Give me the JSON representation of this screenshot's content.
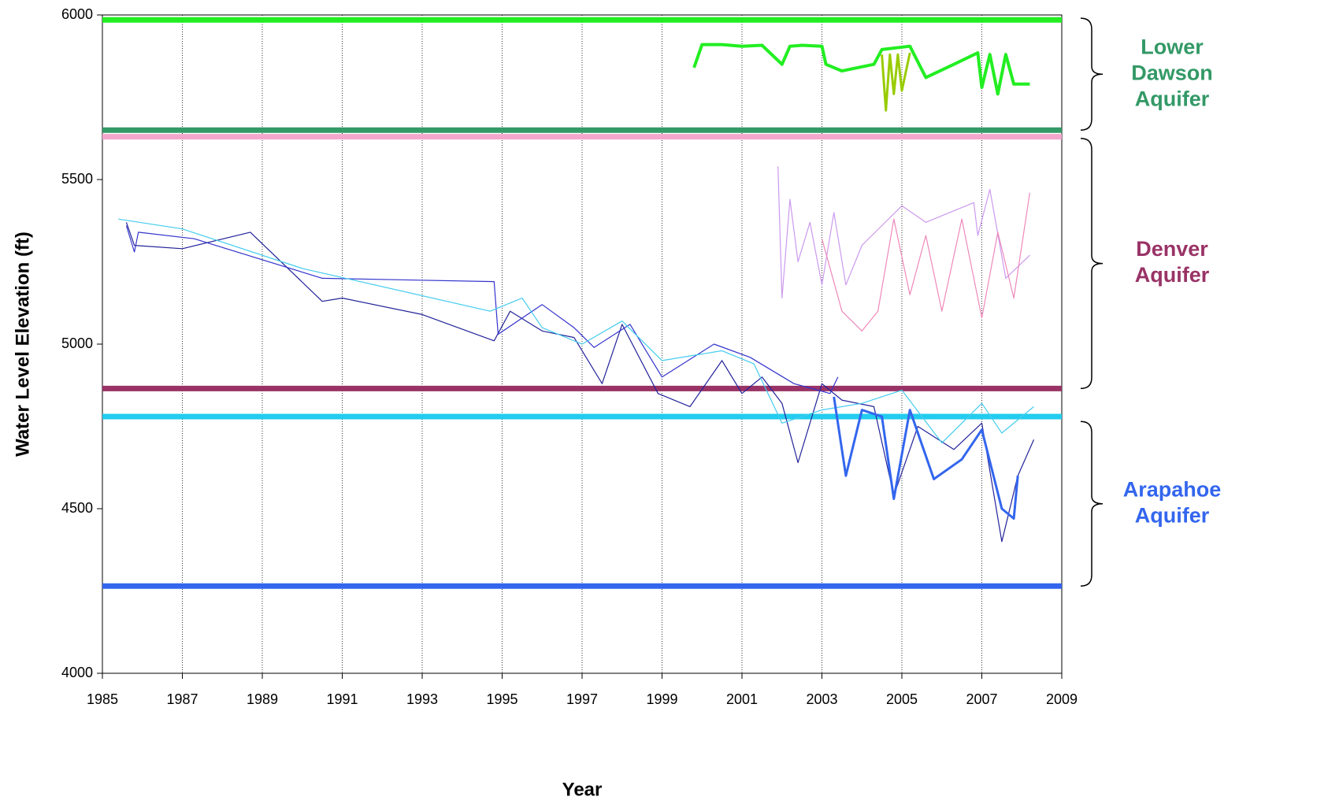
{
  "chart_data": {
    "type": "line",
    "xlabel": "Year",
    "ylabel": "Water Level Elevation (ft)",
    "xlim": [
      1985,
      2009
    ],
    "xticks": [
      1985,
      1987,
      1989,
      1991,
      1993,
      1995,
      1997,
      1999,
      2001,
      2003,
      2005,
      2007,
      2009
    ],
    "ylim": [
      4000,
      6000
    ],
    "yticks": [
      4000,
      4500,
      5000,
      5500,
      6000
    ],
    "grid": "x",
    "hlines": [
      {
        "value": 5985,
        "color": "#22ee22"
      },
      {
        "value": 5650,
        "color": "#339966"
      },
      {
        "value": 5630,
        "color": "#f4a6cc"
      },
      {
        "value": 4865,
        "color": "#993366"
      },
      {
        "value": 4780,
        "color": "#22ccee"
      },
      {
        "value": 4265,
        "color": "#3366ee"
      }
    ],
    "annotations": [
      {
        "lines": [
          "Lower",
          "Dawson",
          "Aquifer"
        ],
        "color": "#339966",
        "range": [
          5650,
          5990
        ]
      },
      {
        "lines": [
          "Denver",
          "Aquifer"
        ],
        "color": "#993366",
        "range": [
          4865,
          5625
        ]
      },
      {
        "lines": [
          "Arapahoe",
          "Aquifer"
        ],
        "color": "#3366ee",
        "range": [
          4265,
          4765
        ]
      }
    ],
    "series": [
      {
        "color": "#22ee22",
        "line_width": 4,
        "x": [
          1999.8,
          2000,
          2000.5,
          2001,
          2001.5,
          2002,
          2002.2,
          2002.5,
          2003,
          2003.1,
          2003.5,
          2004.3,
          2004.5,
          2005.2,
          2005.6,
          2006.3,
          2006.9,
          2007.0,
          2007.2,
          2007.4,
          2007.6,
          2007.8,
          2008.2
        ],
        "values": [
          5840,
          5910,
          5910,
          5905,
          5908,
          5850,
          5905,
          5908,
          5905,
          5850,
          5830,
          5850,
          5895,
          5905,
          5810,
          5850,
          5885,
          5780,
          5880,
          5760,
          5880,
          5790,
          5790
        ]
      },
      {
        "color": "#99cc00",
        "line_width": 3,
        "x": [
          2004.5,
          2004.6,
          2004.7,
          2004.8,
          2004.9,
          2005.0,
          2005.2
        ],
        "values": [
          5880,
          5710,
          5880,
          5760,
          5880,
          5770,
          5885
        ]
      },
      {
        "color": "#cc99ee",
        "line_width": 1.2,
        "x": [
          2001.9,
          2002,
          2002.2,
          2002.4,
          2002.7,
          2003,
          2003.3,
          2003.6,
          2004,
          2004.5,
          2005,
          2005.6,
          2006.8,
          2006.9,
          2007.2,
          2007.6,
          2008.2
        ],
        "values": [
          5540,
          5140,
          5440,
          5250,
          5370,
          5180,
          5400,
          5180,
          5300,
          5360,
          5420,
          5370,
          5430,
          5330,
          5470,
          5200,
          5270
        ]
      },
      {
        "color": "#ee88bb",
        "line_width": 1.2,
        "x": [
          2003,
          2003.5,
          2004,
          2004.4,
          2004.8,
          2005.2,
          2005.6,
          2006,
          2006.5,
          2007,
          2007.4,
          2007.8,
          2008.2
        ],
        "values": [
          5320,
          5100,
          5040,
          5100,
          5380,
          5150,
          5330,
          5100,
          5380,
          5080,
          5340,
          5140,
          5460
        ]
      },
      {
        "color": "#22229a",
        "line_width": 1.2,
        "x": [
          1985.6,
          1985.8,
          1987,
          1988.7,
          1990.5,
          1991,
          1993,
          1994.8,
          1995.2,
          1996,
          1996.8,
          1997.5,
          1998,
          1998.9,
          1999.7,
          2000.5,
          2001,
          2001.5,
          2002,
          2002.4,
          2003,
          2003.5,
          2004.3,
          2004.8,
          2005.4,
          2006.3,
          2007,
          2007.5,
          2007.9,
          2008.3
        ],
        "values": [
          5370,
          5300,
          5290,
          5340,
          5130,
          5140,
          5090,
          5010,
          5100,
          5040,
          5020,
          4880,
          5060,
          4850,
          4810,
          4950,
          4850,
          4900,
          4820,
          4640,
          4880,
          4830,
          4810,
          4540,
          4750,
          4680,
          4760,
          4400,
          4600,
          4710
        ]
      },
      {
        "color": "#3333cc",
        "line_width": 1.2,
        "x": [
          1985.6,
          1985.8,
          1985.9,
          1987.3,
          1990.5,
          1994.8,
          1994.9,
          1996,
          1996.8,
          1997.3,
          1998.2,
          1999,
          2000.3,
          2001.2,
          2002.3,
          2003.2,
          2003.4
        ],
        "values": [
          5360,
          5280,
          5340,
          5320,
          5200,
          5190,
          5030,
          5120,
          5050,
          4990,
          5060,
          4900,
          5000,
          4960,
          4880,
          4850,
          4900
        ]
      },
      {
        "color": "#44ccee",
        "line_width": 1.2,
        "x": [
          1985.4,
          1987,
          1990,
          1994.7,
          1995.5,
          1996,
          1997,
          1998,
          1999,
          2000.5,
          2001.3,
          2002,
          2003,
          2004,
          2005,
          2006,
          2007,
          2007.5,
          2008.3
        ],
        "values": [
          5380,
          5350,
          5230,
          5100,
          5140,
          5050,
          5000,
          5070,
          4950,
          4980,
          4940,
          4760,
          4800,
          4820,
          4860,
          4700,
          4820,
          4730,
          4810
        ]
      },
      {
        "color": "#3366ee",
        "line_width": 3,
        "x": [
          2003.3,
          2003.6,
          2004,
          2004.5,
          2004.8,
          2005.2,
          2005.8,
          2006.5,
          2007,
          2007.5,
          2007.8,
          2007.9
        ],
        "values": [
          4840,
          4600,
          4800,
          4780,
          4530,
          4800,
          4590,
          4650,
          4740,
          4500,
          4470,
          4600
        ]
      }
    ]
  }
}
